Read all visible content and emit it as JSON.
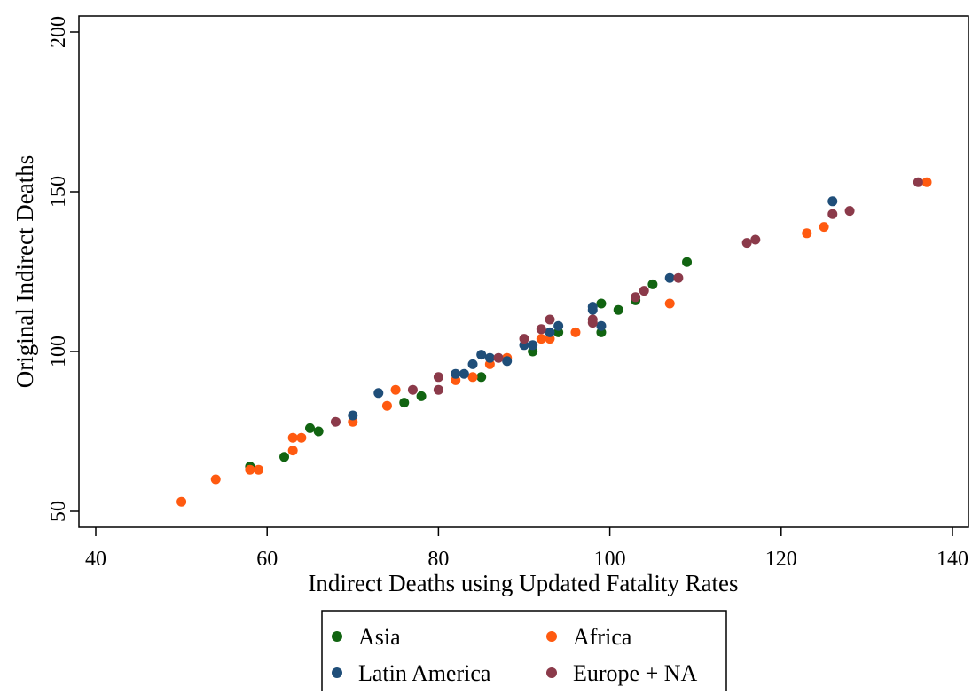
{
  "colors": {
    "Asia": "#116411",
    "Africa": "#ff5a10",
    "Latin America": "#1f4e79",
    "Europe + NA": "#8b3a4a"
  },
  "chart_data": {
    "type": "scatter",
    "title": "",
    "xlabel": "Indirect Deaths using Updated Fatality Rates",
    "ylabel": "Original Indirect Deaths",
    "xlim": [
      40,
      140
    ],
    "ylim": [
      50,
      200
    ],
    "xticks": [
      "40",
      "60",
      "80",
      "100",
      "120",
      "140"
    ],
    "yticks": [
      "50",
      "100",
      "150",
      "200"
    ],
    "grid": false,
    "legend_position": "bottom",
    "series": [
      {
        "name": "Asia",
        "points": [
          [
            58,
            64
          ],
          [
            62,
            67
          ],
          [
            65,
            76
          ],
          [
            66,
            75
          ],
          [
            76,
            84
          ],
          [
            78,
            86
          ],
          [
            85,
            92
          ],
          [
            91,
            100
          ],
          [
            94,
            106
          ],
          [
            99,
            106
          ],
          [
            99,
            115
          ],
          [
            101,
            113
          ],
          [
            103,
            116
          ],
          [
            105,
            121
          ],
          [
            109,
            128
          ]
        ]
      },
      {
        "name": "Africa",
        "points": [
          [
            50,
            53
          ],
          [
            54,
            60
          ],
          [
            58,
            63
          ],
          [
            59,
            63
          ],
          [
            63,
            69
          ],
          [
            63,
            73
          ],
          [
            64,
            73
          ],
          [
            70,
            78
          ],
          [
            74,
            83
          ],
          [
            75,
            88
          ],
          [
            82,
            91
          ],
          [
            84,
            92
          ],
          [
            86,
            96
          ],
          [
            88,
            98
          ],
          [
            92,
            104
          ],
          [
            93,
            104
          ],
          [
            96,
            106
          ],
          [
            107,
            115
          ],
          [
            123,
            137
          ],
          [
            125,
            139
          ],
          [
            137,
            153
          ]
        ]
      },
      {
        "name": "Latin America",
        "points": [
          [
            70,
            80
          ],
          [
            73,
            87
          ],
          [
            82,
            93
          ],
          [
            83,
            93
          ],
          [
            84,
            96
          ],
          [
            85,
            99
          ],
          [
            86,
            98
          ],
          [
            88,
            97
          ],
          [
            90,
            102
          ],
          [
            91,
            102
          ],
          [
            93,
            106
          ],
          [
            94,
            108
          ],
          [
            98,
            113
          ],
          [
            98,
            114
          ],
          [
            99,
            108
          ],
          [
            107,
            123
          ],
          [
            126,
            147
          ]
        ]
      },
      {
        "name": "Europe + NA",
        "points": [
          [
            68,
            78
          ],
          [
            77,
            88
          ],
          [
            80,
            88
          ],
          [
            80,
            92
          ],
          [
            87,
            98
          ],
          [
            90,
            104
          ],
          [
            92,
            107
          ],
          [
            93,
            110
          ],
          [
            98,
            109
          ],
          [
            98,
            110
          ],
          [
            103,
            117
          ],
          [
            104,
            119
          ],
          [
            108,
            123
          ],
          [
            116,
            134
          ],
          [
            117,
            135
          ],
          [
            126,
            143
          ],
          [
            128,
            144
          ],
          [
            136,
            153
          ]
        ]
      }
    ]
  }
}
